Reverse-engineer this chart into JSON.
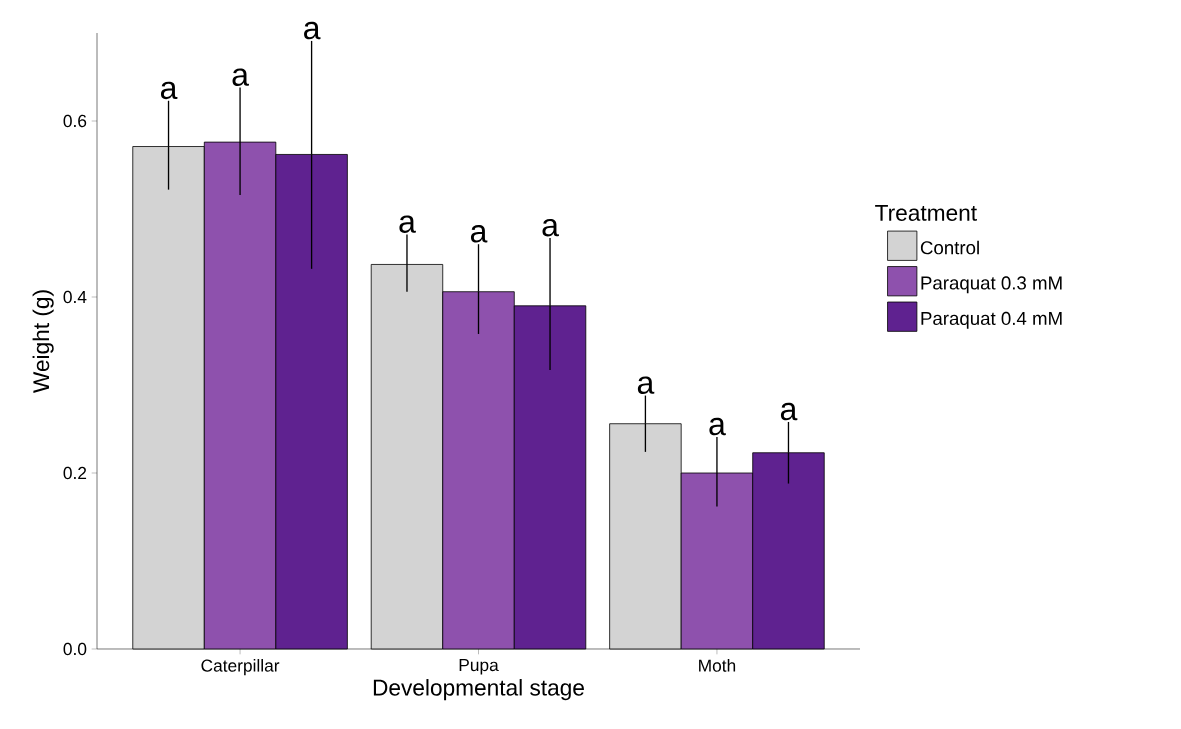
{
  "chart_data": {
    "type": "bar",
    "xlabel": "Developmental stage",
    "ylabel": "Weight (g)",
    "legend_title": "Treatment",
    "legend": "right",
    "categories": [
      "Caterpillar",
      "Pupa",
      "Moth"
    ],
    "series": [
      {
        "name": "Control",
        "color": "#d3d3d3",
        "values": [
          0.571,
          0.437,
          0.256
        ],
        "errors": [
          [
            0.522,
            0.623
          ],
          [
            0.406,
            0.471
          ],
          [
            0.224,
            0.288
          ]
        ]
      },
      {
        "name": "Paraquat 0.3 mM",
        "color": "#8e51ad",
        "values": [
          0.576,
          0.406,
          0.2
        ],
        "errors": [
          [
            0.516,
            0.638
          ],
          [
            0.358,
            0.46
          ],
          [
            0.162,
            0.241
          ]
        ]
      },
      {
        "name": "Paraquat 0.4 mM",
        "color": "#5f2290",
        "values": [
          0.562,
          0.39,
          0.223
        ],
        "errors": [
          [
            0.432,
            0.691
          ],
          [
            0.317,
            0.467
          ],
          [
            0.188,
            0.258
          ]
        ]
      }
    ],
    "ylim": [
      0,
      0.7
    ],
    "yticks": [
      {
        "value": 0,
        "label": "0.0"
      },
      {
        "value": 0.2,
        "label": "0.2"
      },
      {
        "value": 0.4,
        "label": "0.4"
      },
      {
        "value": 0.6,
        "label": "0.6"
      }
    ],
    "annotations": [
      "a",
      "a",
      "a",
      "a",
      "a",
      "a",
      "a",
      "a",
      "a"
    ]
  }
}
